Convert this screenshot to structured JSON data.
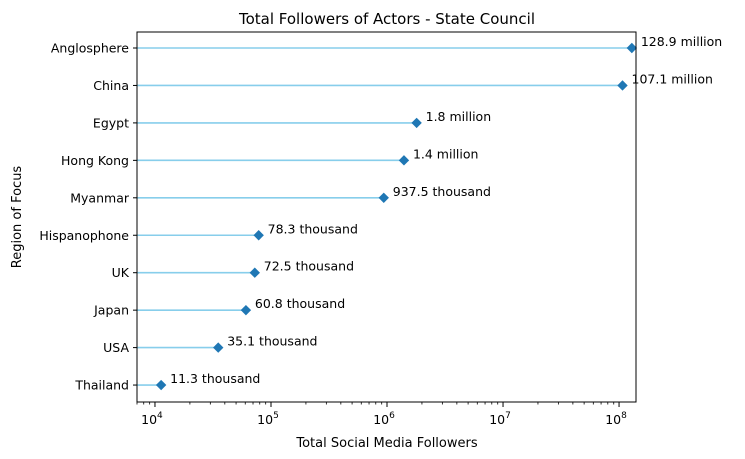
{
  "chart_data": {
    "type": "lollipop",
    "orientation": "horizontal",
    "title": "Total Followers of Actors - State Council",
    "xlabel": "Total Social Media Followers",
    "ylabel": "Region of Focus",
    "xscale": "log",
    "xlim": [
      7000,
      140000000
    ],
    "xticks": [
      {
        "value": 10000,
        "base": "10",
        "exp": "4"
      },
      {
        "value": 100000,
        "base": "10",
        "exp": "5"
      },
      {
        "value": 1000000,
        "base": "10",
        "exp": "6"
      },
      {
        "value": 10000000,
        "base": "10",
        "exp": "7"
      },
      {
        "value": 100000000,
        "base": "10",
        "exp": "8"
      }
    ],
    "grid": false,
    "colors": {
      "stem": "#87ceeb",
      "marker": "#1f77b4"
    },
    "categories": [
      "Anglosphere",
      "China",
      "Egypt",
      "Hong Kong",
      "Myanmar",
      "Hispanophone",
      "UK",
      "Japan",
      "USA",
      "Thailand"
    ],
    "values": [
      128900000,
      107100000,
      1800000,
      1400000,
      937500,
      78300,
      72500,
      60800,
      35100,
      11300
    ],
    "labels": [
      "128.9 million",
      "107.1 million",
      "1.8 million",
      "1.4 million",
      "937.5 thousand",
      "78.3 thousand",
      "72.5 thousand",
      "60.8 thousand",
      "35.1 thousand",
      "11.3 thousand"
    ]
  }
}
